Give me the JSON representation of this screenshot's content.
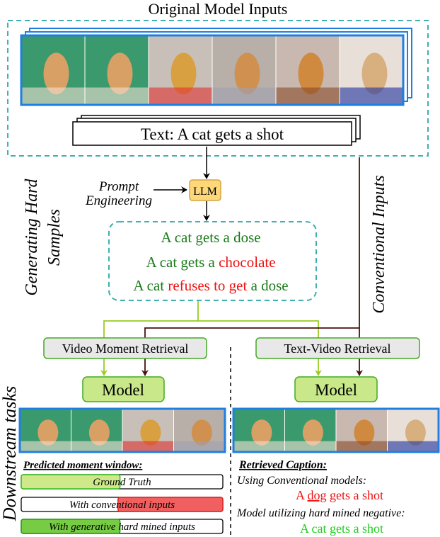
{
  "title": "Original Model Inputs",
  "input_text": "Text: A cat gets a shot",
  "prompt_label": [
    "Prompt",
    "Engineering"
  ],
  "llm_label": "LLM",
  "side_labels": {
    "generating": [
      "Generating Hard",
      "Samples"
    ],
    "conventional": "Conventional Inputs",
    "downstream": "Downstream tasks"
  },
  "hard_samples": [
    {
      "parts": [
        {
          "text": "A cat gets a dose",
          "color": "#1a7a1a"
        }
      ]
    },
    {
      "parts": [
        {
          "text": "A cat gets a ",
          "color": "#1a7a1a"
        },
        {
          "text": "chocolate",
          "color": "#ee1111"
        }
      ]
    },
    {
      "parts": [
        {
          "text": "A cat ",
          "color": "#1a7a1a"
        },
        {
          "text": "refuses to get",
          "color": "#ee1111"
        },
        {
          "text": " a dose",
          "color": "#1a7a1a"
        }
      ]
    }
  ],
  "tasks": {
    "left": "Video Moment Retrieval",
    "right": "Text-Video Retrieval",
    "model": "Model"
  },
  "moment": {
    "heading": "Predicted moment window:",
    "bars": [
      {
        "label": "Ground Truth",
        "fill_start": 0,
        "fill_end": 0.49,
        "color": "#cfe98a",
        "border": "#33bb22"
      },
      {
        "label": "With conventional inputs",
        "fill_start": 0.48,
        "fill_end": 1.0,
        "color": "#f06060",
        "border": "#dd2222"
      },
      {
        "label": "With generative hard mined inputs",
        "fill_start": 0,
        "fill_end": 0.49,
        "color": "#77cc44",
        "border": "#229922"
      }
    ]
  },
  "retrieval": {
    "heading": "Retrieved Caption:",
    "conventional_label": "Using Conventional  models:",
    "conventional_caption": {
      "pre": "A ",
      "word": "dog",
      "post": " gets a shot",
      "color": "#ee1111"
    },
    "hard_label": "Model utilizing hard mined negative:",
    "hard_caption": {
      "text": "A cat gets a shot",
      "color": "#22cc22"
    }
  },
  "colors": {
    "teal_dashed": "#40b0b0",
    "frame_blue": "#1f7fe0",
    "green_line": "#99cc22",
    "dark_line": "#4a1010",
    "llm_fill": "#fdd77a",
    "model_fill": "#c8e88a"
  }
}
